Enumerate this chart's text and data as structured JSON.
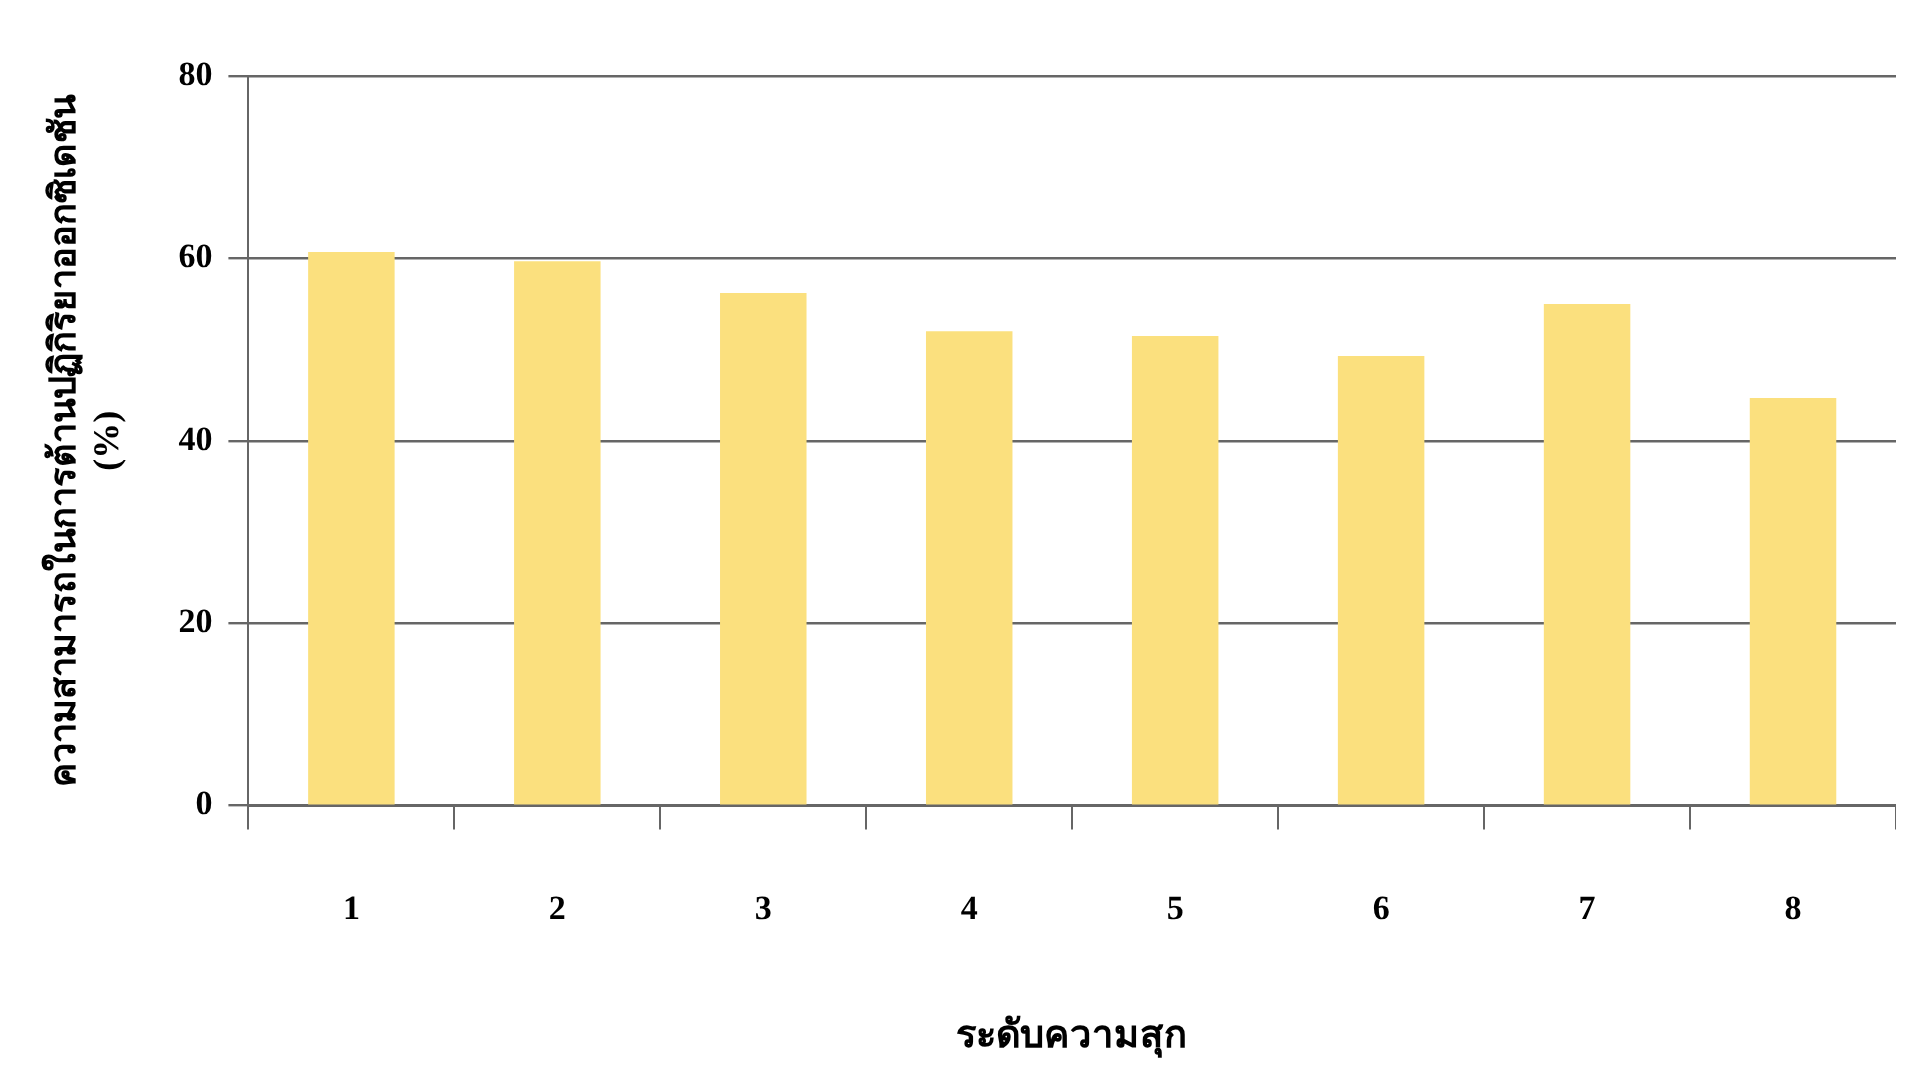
{
  "chart_data": {
    "type": "bar",
    "xlabel": "ระดับความสุก",
    "ylabel": "ความสามารถในการต้านปฏิกิริยาออกซิเดชัน (%)",
    "categories": [
      "1",
      "2",
      "3",
      "4",
      "5",
      "6",
      "7",
      "8"
    ],
    "values": [
      60.7,
      59.7,
      56.2,
      52,
      51.5,
      49.3,
      55,
      44.7
    ],
    "color": "#fbe07e",
    "ylim": [
      0,
      80
    ],
    "yticks": [
      0,
      20,
      40,
      60,
      80
    ],
    "grid": "y",
    "legend": false
  }
}
